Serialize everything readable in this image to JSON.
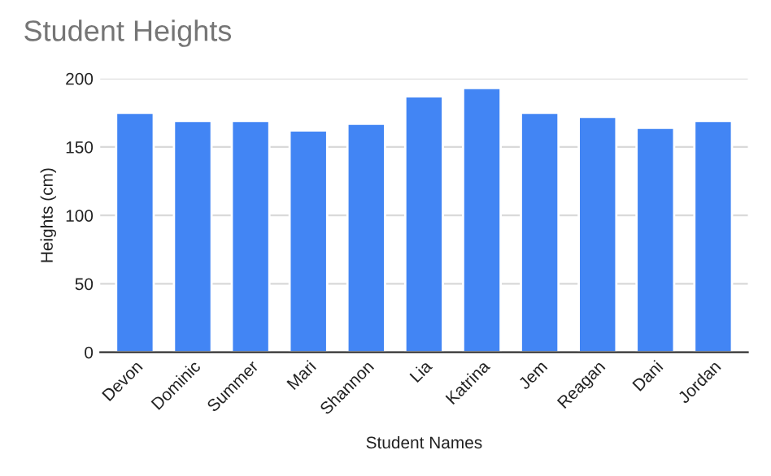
{
  "chart_data": {
    "type": "bar",
    "title": "Student Heights",
    "xlabel": "Student Names",
    "ylabel": "Heights (cm)",
    "categories": [
      "Devon",
      "Dominic",
      "Summer",
      "Mari",
      "Shannon",
      "Lia",
      "Katrina",
      "Jem",
      "Reagan",
      "Dani",
      "Jordan"
    ],
    "values": [
      175,
      169,
      169,
      162,
      167,
      187,
      193,
      175,
      172,
      164,
      169
    ],
    "color": "#4285f4",
    "ylim": [
      0,
      200
    ],
    "yticks": [
      0,
      50,
      100,
      150,
      200
    ],
    "grid": "y",
    "legend": false
  }
}
